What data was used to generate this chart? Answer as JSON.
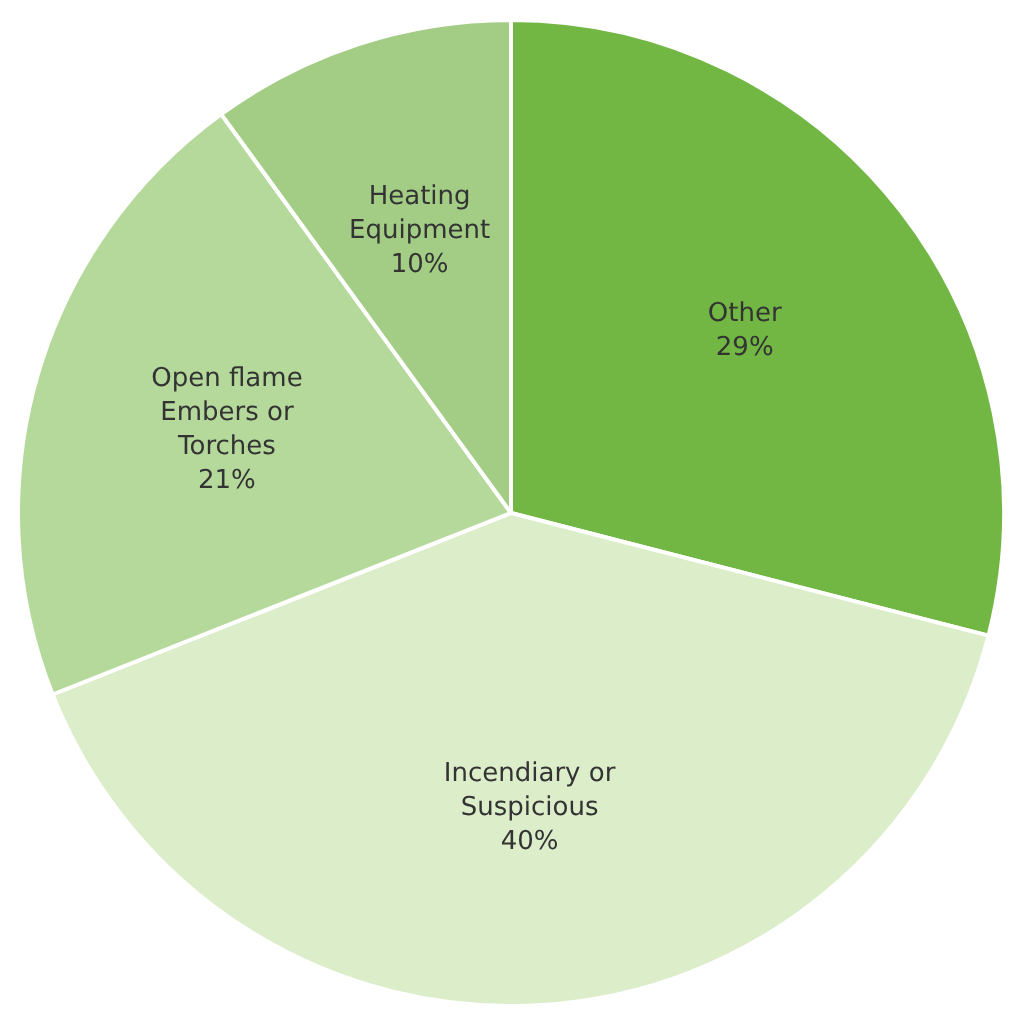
{
  "chart_data": {
    "type": "pie",
    "categories": [
      "Other",
      "Incendiary or Suspicious",
      "Open flame Embers or Torches",
      "Heating Equipment"
    ],
    "values": [
      29,
      40,
      21,
      10
    ],
    "value_labels": [
      "29%",
      "40%",
      "21%",
      "10%"
    ],
    "colors": [
      "#72b743",
      "#dcedc9",
      "#b5d99b",
      "#a3cd85"
    ],
    "legend": false
  }
}
